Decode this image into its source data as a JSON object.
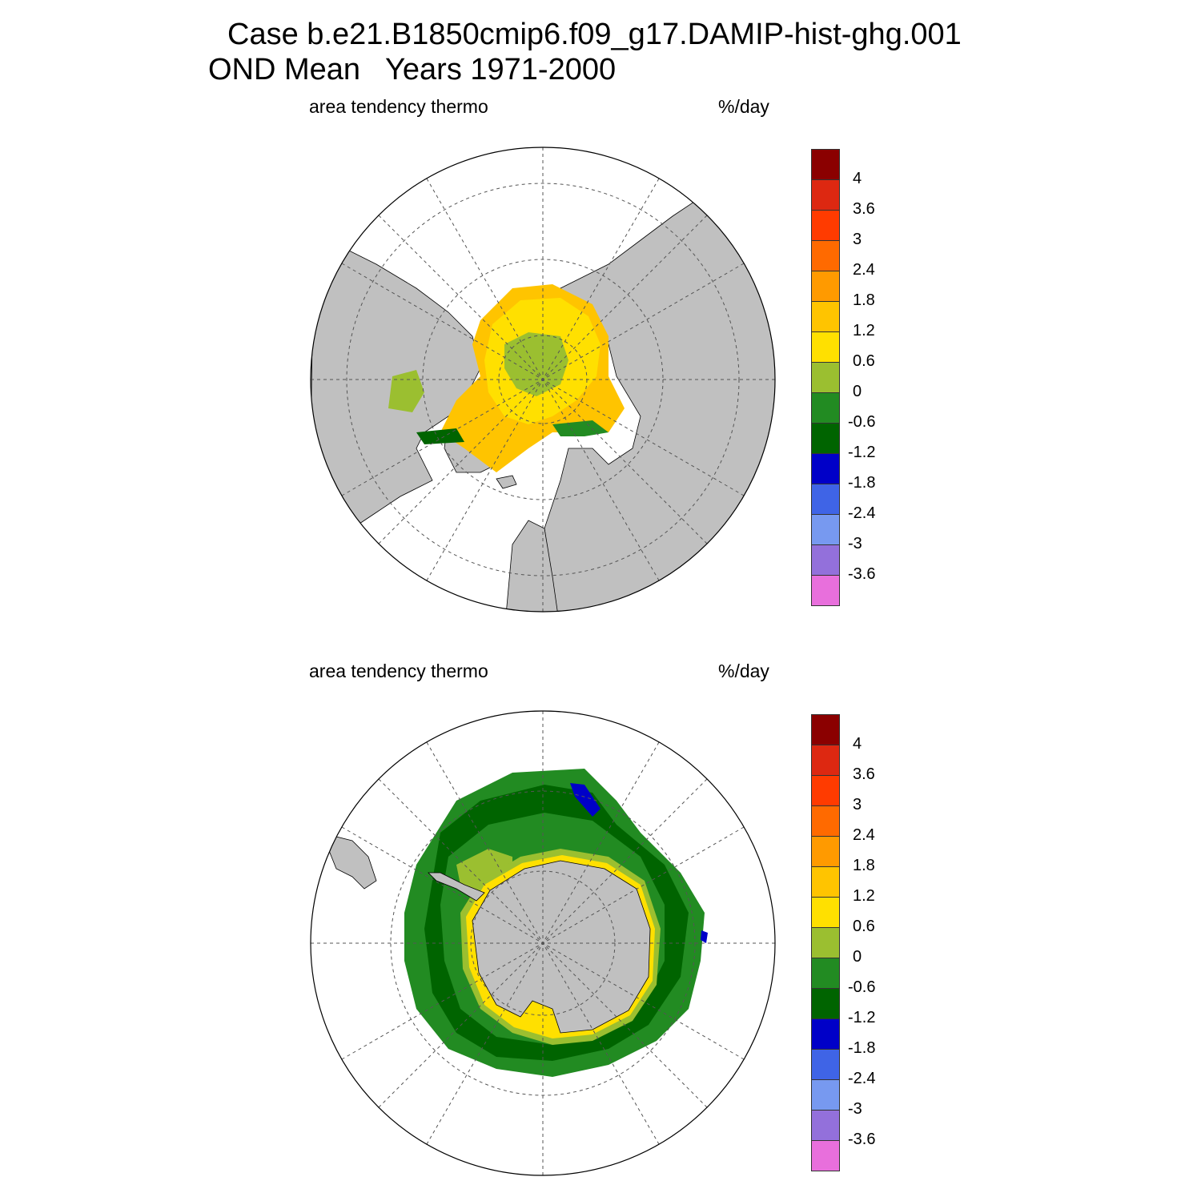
{
  "title": {
    "line1": "Case b.e21.B1850cmip6.f09_g17.DAMIP-hist-ghg.001",
    "line2": "OND Mean   Years 1971-2000"
  },
  "panels": [
    {
      "id": "north",
      "left_label": "area tendency thermo",
      "right_label": "%/day"
    },
    {
      "id": "south",
      "left_label": "area tendency thermo",
      "right_label": "%/day"
    }
  ],
  "colorbar": {
    "labels": [
      "4",
      "3.6",
      "3",
      "2.4",
      "1.8",
      "1.2",
      "0.6",
      "0",
      "-0.6",
      "-1.2",
      "-1.8",
      "-2.4",
      "-3",
      "-3.6"
    ],
    "colors": [
      "#8b0000",
      "#dd2811",
      "#ff3b00",
      "#ff6a00",
      "#ff9a00",
      "#ffc400",
      "#ffe000",
      "#9bbf30",
      "#228b22",
      "#006400",
      "#0000c8",
      "#3f64e6",
      "#7799f0",
      "#9370db",
      "#e86fdc"
    ]
  },
  "colors": {
    "land": "#c0c0c0",
    "ocean": "#ffffff",
    "grid": "#555555"
  }
}
